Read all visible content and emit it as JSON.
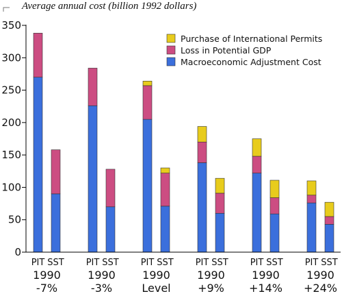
{
  "chart_data": {
    "type": "bar",
    "stacked": true,
    "ylabel": "Average annual cost (billion 1992 dollars)",
    "ylim": [
      0,
      350
    ],
    "yticks": [
      0,
      50,
      100,
      150,
      200,
      250,
      300,
      350
    ],
    "legend": {
      "position": "top-right",
      "order": [
        "Purchase of International Permits",
        "Loss in Potential GDP",
        "Macroeconomic Adjustment Cost"
      ]
    },
    "bar_labels": [
      "PIT",
      "SST"
    ],
    "groups": [
      {
        "line1": "1990",
        "line2": "-7%"
      },
      {
        "line1": "1990",
        "line2": "-3%"
      },
      {
        "line1": "1990",
        "line2": "Level"
      },
      {
        "line1": "1990",
        "line2": "+9%"
      },
      {
        "line1": "1990",
        "line2": "+14%"
      },
      {
        "line1": "1990",
        "line2": "+24%"
      }
    ],
    "series": [
      {
        "name": "Macroeconomic Adjustment Cost",
        "color": "#3b6fdc",
        "values": [
          [
            270,
            90
          ],
          [
            226,
            70
          ],
          [
            205,
            71
          ],
          [
            138,
            60
          ],
          [
            122,
            59
          ],
          [
            76,
            43
          ]
        ]
      },
      {
        "name": "Loss in Potential GDP",
        "color": "#cc4d82",
        "values": [
          [
            68,
            68
          ],
          [
            58,
            58
          ],
          [
            52,
            51
          ],
          [
            32,
            31
          ],
          [
            26,
            25
          ],
          [
            12,
            12
          ]
        ]
      },
      {
        "name": "Purchase of International Permits",
        "color": "#e8cc1c",
        "values": [
          [
            0,
            0
          ],
          [
            0,
            0
          ],
          [
            7,
            8
          ],
          [
            24,
            23
          ],
          [
            27,
            27
          ],
          [
            22,
            22
          ]
        ]
      }
    ]
  }
}
